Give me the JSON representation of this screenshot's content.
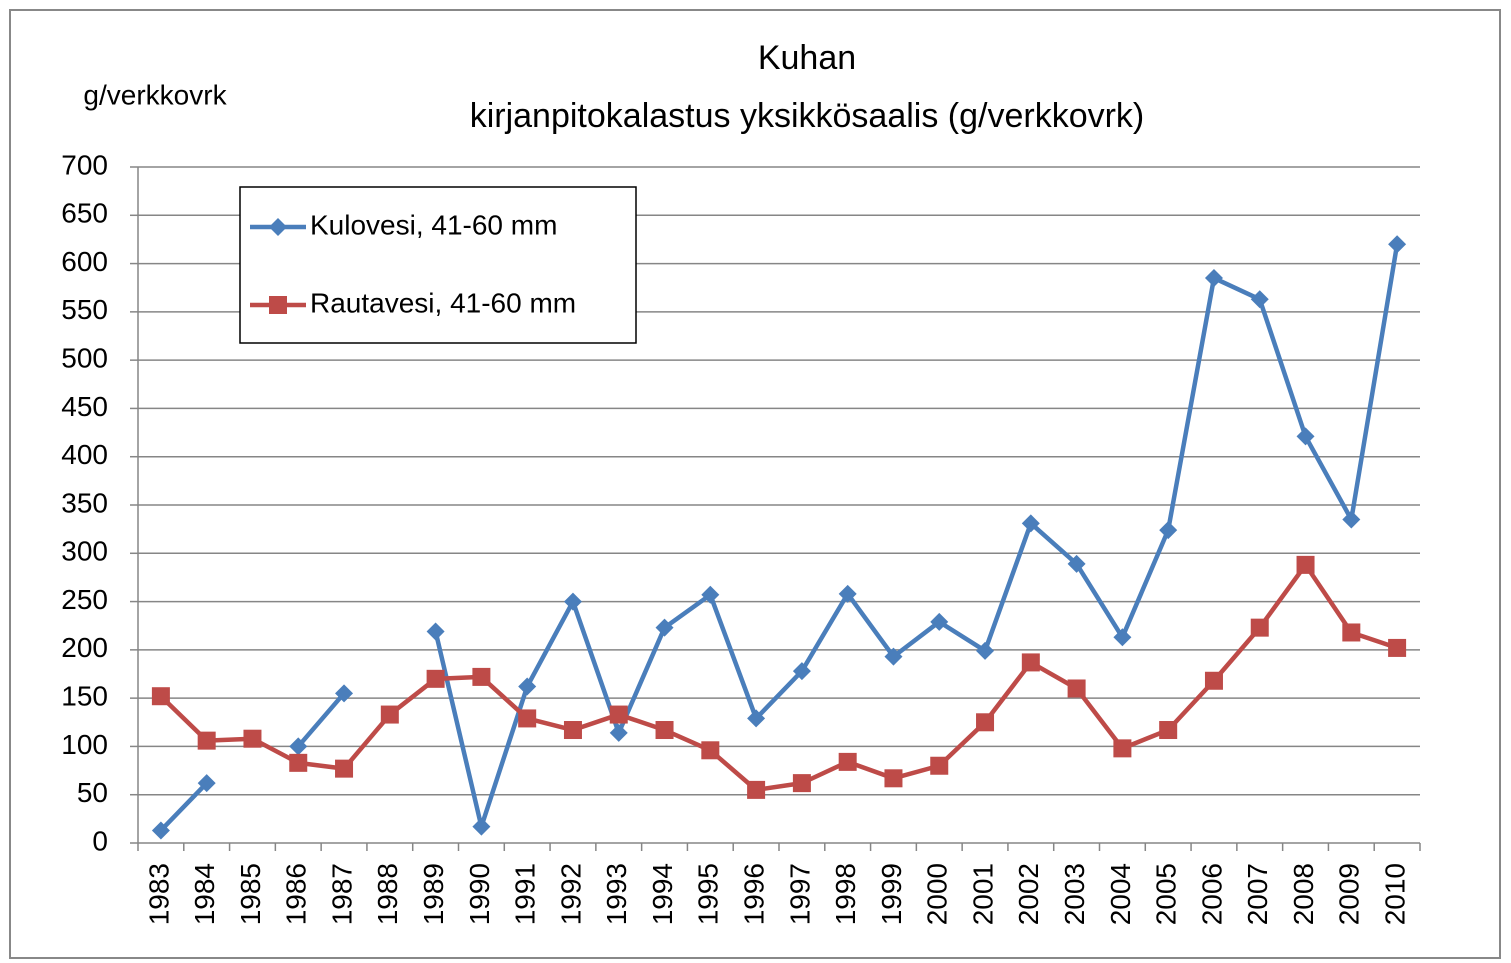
{
  "chart_data": {
    "type": "line",
    "title": [
      "Kuhan",
      "kirjanpitokalastus yksikkösaalis (g/verkkovrk)"
    ],
    "y_label": "g/verkkovrk",
    "categories": [
      "1983",
      "1984",
      "1985",
      "1986",
      "1987",
      "1988",
      "1989",
      "1990",
      "1991",
      "1992",
      "1993",
      "1994",
      "1995",
      "1996",
      "1997",
      "1998",
      "1999",
      "2000",
      "2001",
      "2002",
      "2003",
      "2004",
      "2005",
      "2006",
      "2007",
      "2008",
      "2009",
      "2010"
    ],
    "series": [
      {
        "name": "Kulovesi, 41-60 mm",
        "color": "#4a7ebb",
        "marker": "diamond",
        "values": [
          13,
          62,
          null,
          100,
          155,
          null,
          219,
          17,
          162,
          250,
          114,
          223,
          257,
          129,
          178,
          258,
          193,
          229,
          199,
          331,
          289,
          213,
          324,
          585,
          563,
          421,
          335,
          620
        ]
      },
      {
        "name": "Rautavesi, 41-60 mm",
        "color": "#be4b48",
        "marker": "square",
        "values": [
          152,
          106,
          108,
          83,
          77,
          133,
          170,
          172,
          129,
          117,
          133,
          117,
          96,
          55,
          62,
          84,
          67,
          80,
          125,
          187,
          160,
          98,
          117,
          168,
          223,
          288,
          218,
          202
        ]
      }
    ],
    "ylim": [
      0,
      700
    ],
    "yticks": [
      0,
      50,
      100,
      150,
      200,
      250,
      300,
      350,
      400,
      450,
      500,
      550,
      600,
      650,
      700
    ],
    "grid": true,
    "legend": "top-left"
  }
}
